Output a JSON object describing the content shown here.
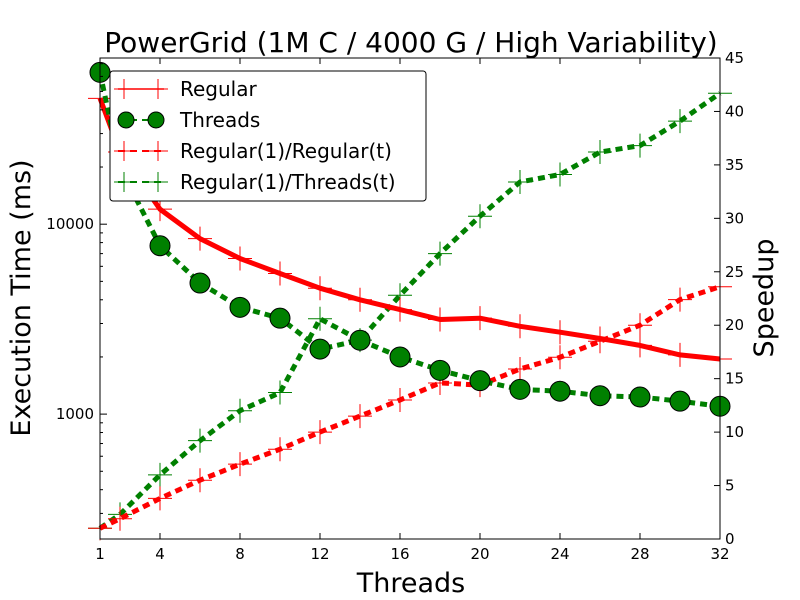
{
  "chart_data": {
    "type": "line",
    "title": "PowerGrid (1M C / 4000 G / High Variability)",
    "xlabel": "Threads",
    "ylabel": "Execution Time (ms)",
    "y2label": "Speedup",
    "x_ticks": [
      1,
      4,
      8,
      12,
      16,
      20,
      24,
      28,
      32
    ],
    "y_ticks": [
      {
        "value": 1000,
        "label": "1000"
      },
      {
        "value": 10000,
        "label": "10000"
      }
    ],
    "y2_ticks": [
      0,
      5,
      10,
      15,
      20,
      25,
      30,
      35,
      40,
      45
    ],
    "xlim": [
      1,
      32
    ],
    "ylim": [
      220,
      75000
    ],
    "y_scale": "log",
    "y2lim": [
      0,
      45
    ],
    "legend_position": "top-left",
    "grid": false,
    "series": [
      {
        "name": "Regular",
        "axis": "left",
        "color": "#ff0000",
        "style": "solid",
        "marker": "plus",
        "points": [
          [
            1,
            46000
          ],
          [
            2,
            24000
          ],
          [
            4,
            12000
          ],
          [
            6,
            8400
          ],
          [
            8,
            6600
          ],
          [
            10,
            5500
          ],
          [
            12,
            4600
          ],
          [
            14,
            4000
          ],
          [
            16,
            3550
          ],
          [
            18,
            3150
          ],
          [
            20,
            3200
          ],
          [
            22,
            2900
          ],
          [
            24,
            2700
          ],
          [
            26,
            2500
          ],
          [
            28,
            2300
          ],
          [
            30,
            2050
          ],
          [
            32,
            1950
          ]
        ]
      },
      {
        "name": "Threads",
        "axis": "left",
        "color": "#008000",
        "style": "dashed",
        "marker": "circle",
        "points": [
          [
            1,
            63000
          ],
          [
            2,
            20000
          ],
          [
            4,
            7700
          ],
          [
            6,
            4900
          ],
          [
            8,
            3650
          ],
          [
            10,
            3200
          ],
          [
            12,
            2200
          ],
          [
            14,
            2450
          ],
          [
            16,
            2000
          ],
          [
            18,
            1700
          ],
          [
            20,
            1500
          ],
          [
            22,
            1350
          ],
          [
            24,
            1320
          ],
          [
            26,
            1250
          ],
          [
            28,
            1230
          ],
          [
            30,
            1170
          ],
          [
            32,
            1100
          ]
        ]
      },
      {
        "name": "Regular(1)/Regular(t)",
        "axis": "right",
        "color": "#ff0000",
        "style": "dashed",
        "marker": "plus",
        "points": [
          [
            1,
            1
          ],
          [
            2,
            1.9
          ],
          [
            4,
            3.8
          ],
          [
            6,
            5.5
          ],
          [
            8,
            7
          ],
          [
            10,
            8.4
          ],
          [
            12,
            10
          ],
          [
            14,
            11.5
          ],
          [
            16,
            13
          ],
          [
            18,
            14.6
          ],
          [
            20,
            14.4
          ],
          [
            22,
            15.9
          ],
          [
            24,
            17
          ],
          [
            26,
            18.5
          ],
          [
            28,
            20
          ],
          [
            30,
            22.4
          ],
          [
            32,
            23.6
          ]
        ]
      },
      {
        "name": "Regular(1)/Threads(t)",
        "axis": "right",
        "color": "#008000",
        "style": "dashed",
        "marker": "plus",
        "points": [
          [
            1,
            1
          ],
          [
            2,
            2.3
          ],
          [
            4,
            6
          ],
          [
            6,
            9.2
          ],
          [
            8,
            12
          ],
          [
            10,
            13.7
          ],
          [
            12,
            20.6
          ],
          [
            14,
            18.6
          ],
          [
            16,
            22.8
          ],
          [
            18,
            26.7
          ],
          [
            20,
            30.2
          ],
          [
            22,
            33.4
          ],
          [
            24,
            34.1
          ],
          [
            26,
            36.2
          ],
          [
            28,
            36.8
          ],
          [
            30,
            39.1
          ],
          [
            32,
            41.7
          ]
        ]
      }
    ]
  }
}
